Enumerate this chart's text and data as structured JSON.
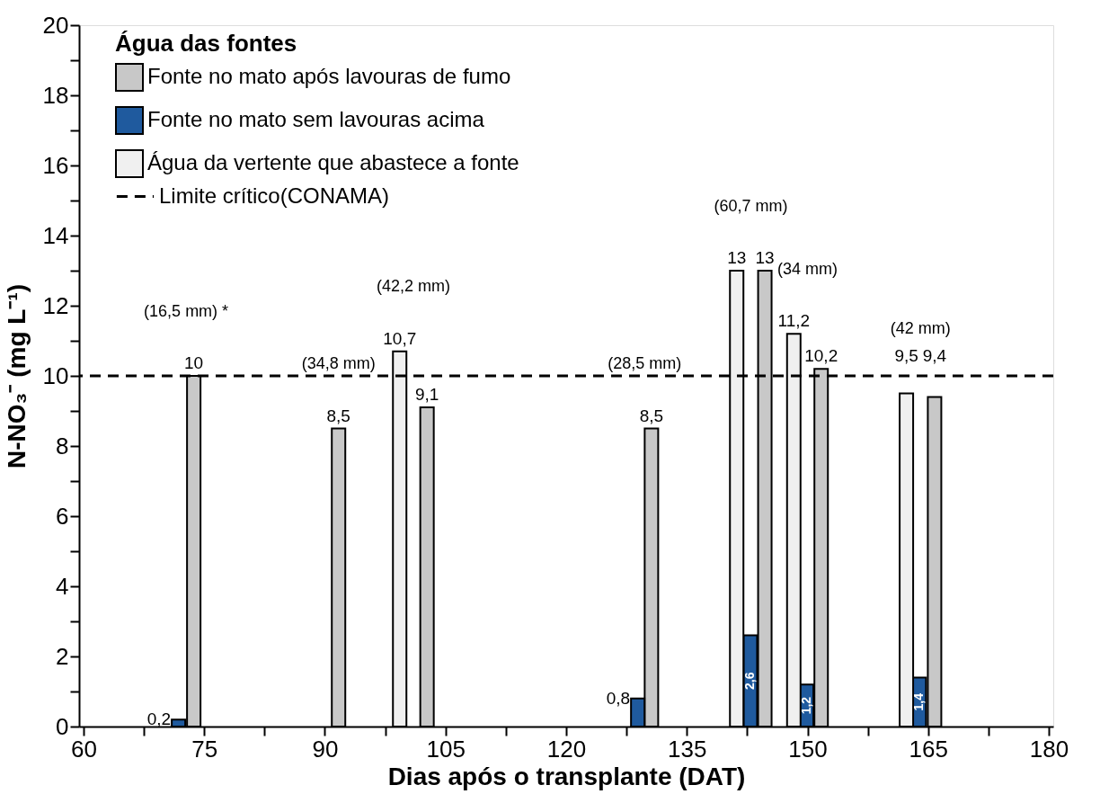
{
  "chart_data": {
    "type": "bar",
    "xlabel": "Dias após o transplante (DAT)",
    "ylabel": "N-NO₃⁻ (mg L⁻¹)",
    "legend_title": "Água das fontes",
    "legend": "top left",
    "xlim": [
      60,
      180
    ],
    "xticks": [
      60,
      {
        "value": 67.5,
        "label": null
      },
      75,
      {
        "value": 82.5,
        "label": null
      },
      90,
      {
        "value": 97.5,
        "label": null
      },
      105,
      {
        "value": 112.5,
        "label": null
      },
      120,
      {
        "value": 127.5,
        "label": null
      },
      135,
      {
        "value": 142.5,
        "label": null
      },
      150,
      {
        "value": 157.5,
        "label": null
      },
      165,
      {
        "value": 172.5,
        "label": null
      },
      180
    ],
    "ylim": [
      0,
      20
    ],
    "yticks": [
      0,
      {
        "value": 1,
        "label": null
      },
      2,
      {
        "value": 3,
        "label": null
      },
      4,
      {
        "value": 5,
        "label": null
      },
      6,
      {
        "value": 7,
        "label": null
      },
      8,
      {
        "value": 9,
        "label": null
      },
      10,
      {
        "value": 11,
        "label": null
      },
      12,
      {
        "value": 13,
        "label": null
      },
      14,
      {
        "value": 15,
        "label": null
      },
      16,
      {
        "value": 17,
        "label": null
      },
      18,
      {
        "value": 19,
        "label": null
      },
      20
    ],
    "grid": false,
    "series": [
      {
        "name": "Fonte no mato após lavouras de fumo",
        "color": "#c8c8c8",
        "x": [
          73.7,
          91.7,
          102.7,
          130.6,
          144.7,
          151.7,
          165.8
        ],
        "values": [
          10,
          8.5,
          9.1,
          8.5,
          13,
          10.2,
          9.4
        ],
        "value_labels": [
          "10",
          "8,5",
          "9,1",
          "8,5",
          "13",
          "10,2",
          "9,4"
        ]
      },
      {
        "name": "Fonte no mato sem lavouras acima",
        "color": "#1f5a9e",
        "x": [
          71.8,
          128.9,
          142.9,
          149.9,
          163.9
        ],
        "values": [
          0.2,
          0.8,
          2.6,
          1.2,
          1.4
        ],
        "value_labels": [
          "0,2",
          "0,8",
          "2,6",
          "1,2",
          "1,4"
        ]
      },
      {
        "name": "Água da vertente que abastece a fonte",
        "color": "#f0f0f0",
        "x": [
          99.3,
          141.2,
          148.3,
          162.3
        ],
        "values": [
          10.7,
          13,
          11.2,
          9.5
        ],
        "value_labels": [
          "10,7",
          "13",
          "11,2",
          "9,5"
        ]
      }
    ],
    "ref_lines": [
      {
        "axis": "y",
        "value": 10,
        "label": "Limite crítico(CONAMA)",
        "color": "#000000",
        "line_style": "dashed"
      }
    ],
    "annotations": [
      "(16,5 mm) *",
      "(34,8 mm)",
      "(42,2 mm)",
      "(28,5 mm)",
      "(60,7 mm)",
      "(34 mm)",
      "(42 mm)"
    ]
  }
}
